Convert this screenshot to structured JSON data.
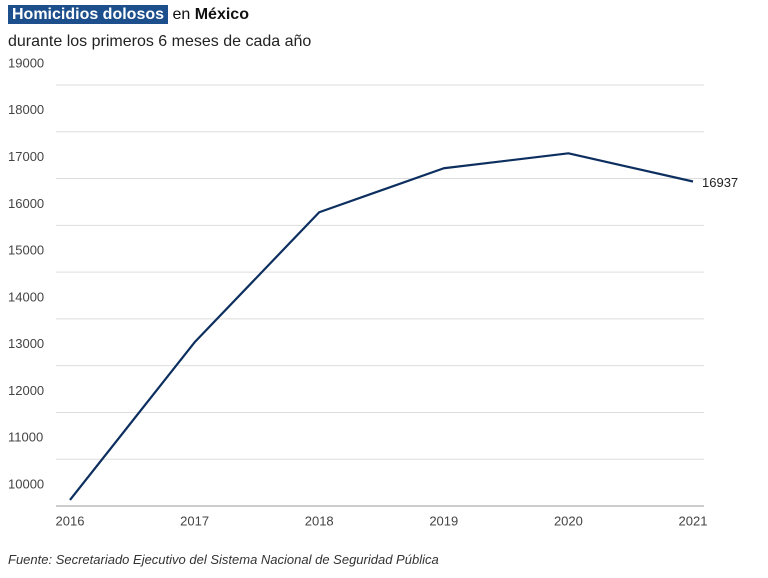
{
  "chart_data": {
    "type": "line",
    "title": [
      "Homicidios dolosos",
      "en",
      "México"
    ],
    "subtitle": "durante los primeros 6 meses de cada año",
    "source": "Fuente: Secretariado Ejecutivo del Sistema Nacional de Seguridad Pública",
    "categories": [
      "2016",
      "2017",
      "2018",
      "2019",
      "2020",
      "2021"
    ],
    "values": [
      10130,
      13500,
      16280,
      17220,
      17540,
      16937
    ],
    "color": "#0d2f5f",
    "ylim": [
      10000,
      19000
    ],
    "yticks": [
      10000,
      11000,
      12000,
      13000,
      14000,
      15000,
      16000,
      17000,
      18000,
      19000
    ],
    "grid": true
  }
}
